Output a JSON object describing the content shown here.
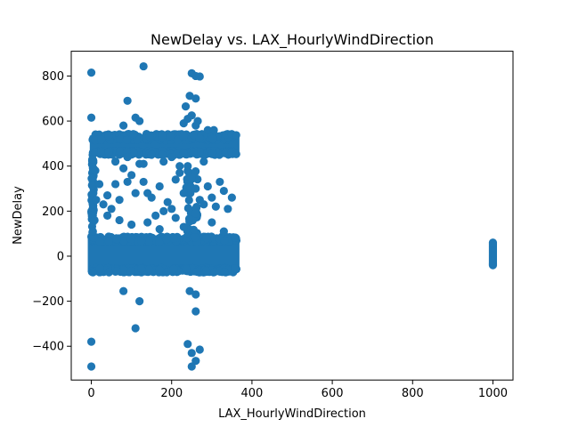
{
  "chart_data": {
    "type": "scatter",
    "title": "NewDelay vs. LAX_HourlyWindDirection",
    "xlabel": "LAX_HourlyWindDirection",
    "ylabel": "NewDelay",
    "xlim": [
      -50,
      1050
    ],
    "ylim": [
      -550,
      910
    ],
    "xticks": [
      0,
      200,
      400,
      600,
      800,
      1000
    ],
    "xtick_labels": [
      "0",
      "200",
      "400",
      "600",
      "800",
      "1000"
    ],
    "yticks": [
      -400,
      -200,
      0,
      200,
      400,
      600,
      800
    ],
    "ytick_labels": [
      "−400",
      "−200",
      "0",
      "200",
      "400",
      "600",
      "800"
    ],
    "grid": false,
    "legend": "none",
    "marker_color": "#1f77b4",
    "description": "Dense cloud of points for wind direction 0–360 with delays mostly between -70 and 80, a second dense band around 450–540, scattered points 80–450, a few outliers; plus a vertical cluster at direction 1000 with delays -40 to 60.",
    "bands": [
      {
        "x": [
          0,
          360
        ],
        "y": [
          -70,
          80
        ],
        "density": "very high"
      },
      {
        "x": [
          0,
          360
        ],
        "y": [
          450,
          540
        ],
        "density": "high"
      }
    ],
    "points": [
      [
        0,
        815
      ],
      [
        130,
        843
      ],
      [
        0,
        615
      ],
      [
        90,
        690
      ],
      [
        110,
        615
      ],
      [
        250,
        812
      ],
      [
        260,
        800
      ],
      [
        270,
        798
      ],
      [
        245,
        712
      ],
      [
        260,
        700
      ],
      [
        235,
        665
      ],
      [
        240,
        610
      ],
      [
        230,
        590
      ],
      [
        250,
        625
      ],
      [
        265,
        600
      ],
      [
        290,
        560
      ],
      [
        305,
        560
      ],
      [
        260,
        580
      ],
      [
        80,
        580
      ],
      [
        120,
        600
      ],
      [
        0,
        -380
      ],
      [
        0,
        -490
      ],
      [
        110,
        -320
      ],
      [
        240,
        -390
      ],
      [
        270,
        -415
      ],
      [
        250,
        -430
      ],
      [
        260,
        -465
      ],
      [
        250,
        -490
      ],
      [
        80,
        -155
      ],
      [
        120,
        -200
      ],
      [
        245,
        -155
      ],
      [
        260,
        -170
      ],
      [
        260,
        -245
      ],
      [
        20,
        320
      ],
      [
        30,
        230
      ],
      [
        40,
        270
      ],
      [
        50,
        210
      ],
      [
        60,
        320
      ],
      [
        70,
        250
      ],
      [
        80,
        390
      ],
      [
        90,
        330
      ],
      [
        100,
        360
      ],
      [
        110,
        280
      ],
      [
        120,
        410
      ],
      [
        130,
        330
      ],
      [
        140,
        280
      ],
      [
        150,
        260
      ],
      [
        160,
        180
      ],
      [
        170,
        310
      ],
      [
        180,
        200
      ],
      [
        190,
        240
      ],
      [
        200,
        210
      ],
      [
        210,
        340
      ],
      [
        220,
        370
      ],
      [
        230,
        280
      ],
      [
        240,
        400
      ],
      [
        250,
        350
      ],
      [
        260,
        300
      ],
      [
        270,
        250
      ],
      [
        280,
        230
      ],
      [
        290,
        310
      ],
      [
        300,
        260
      ],
      [
        310,
        220
      ],
      [
        320,
        330
      ],
      [
        330,
        290
      ],
      [
        340,
        210
      ],
      [
        350,
        260
      ],
      [
        60,
        420
      ],
      [
        90,
        440
      ],
      [
        130,
        410
      ],
      [
        150,
        450
      ],
      [
        180,
        420
      ],
      [
        200,
        440
      ],
      [
        220,
        400
      ],
      [
        280,
        420
      ],
      [
        40,
        180
      ],
      [
        70,
        160
      ],
      [
        100,
        140
      ],
      [
        140,
        150
      ],
      [
        170,
        120
      ],
      [
        210,
        170
      ],
      [
        230,
        130
      ],
      [
        260,
        190
      ],
      [
        300,
        150
      ],
      [
        330,
        110
      ],
      [
        10,
        380
      ],
      [
        5,
        280
      ],
      [
        8,
        160
      ],
      [
        3,
        430
      ],
      [
        12,
        250
      ]
    ],
    "cluster_1000": {
      "x": 1000,
      "y": [
        -40,
        60
      ]
    }
  }
}
